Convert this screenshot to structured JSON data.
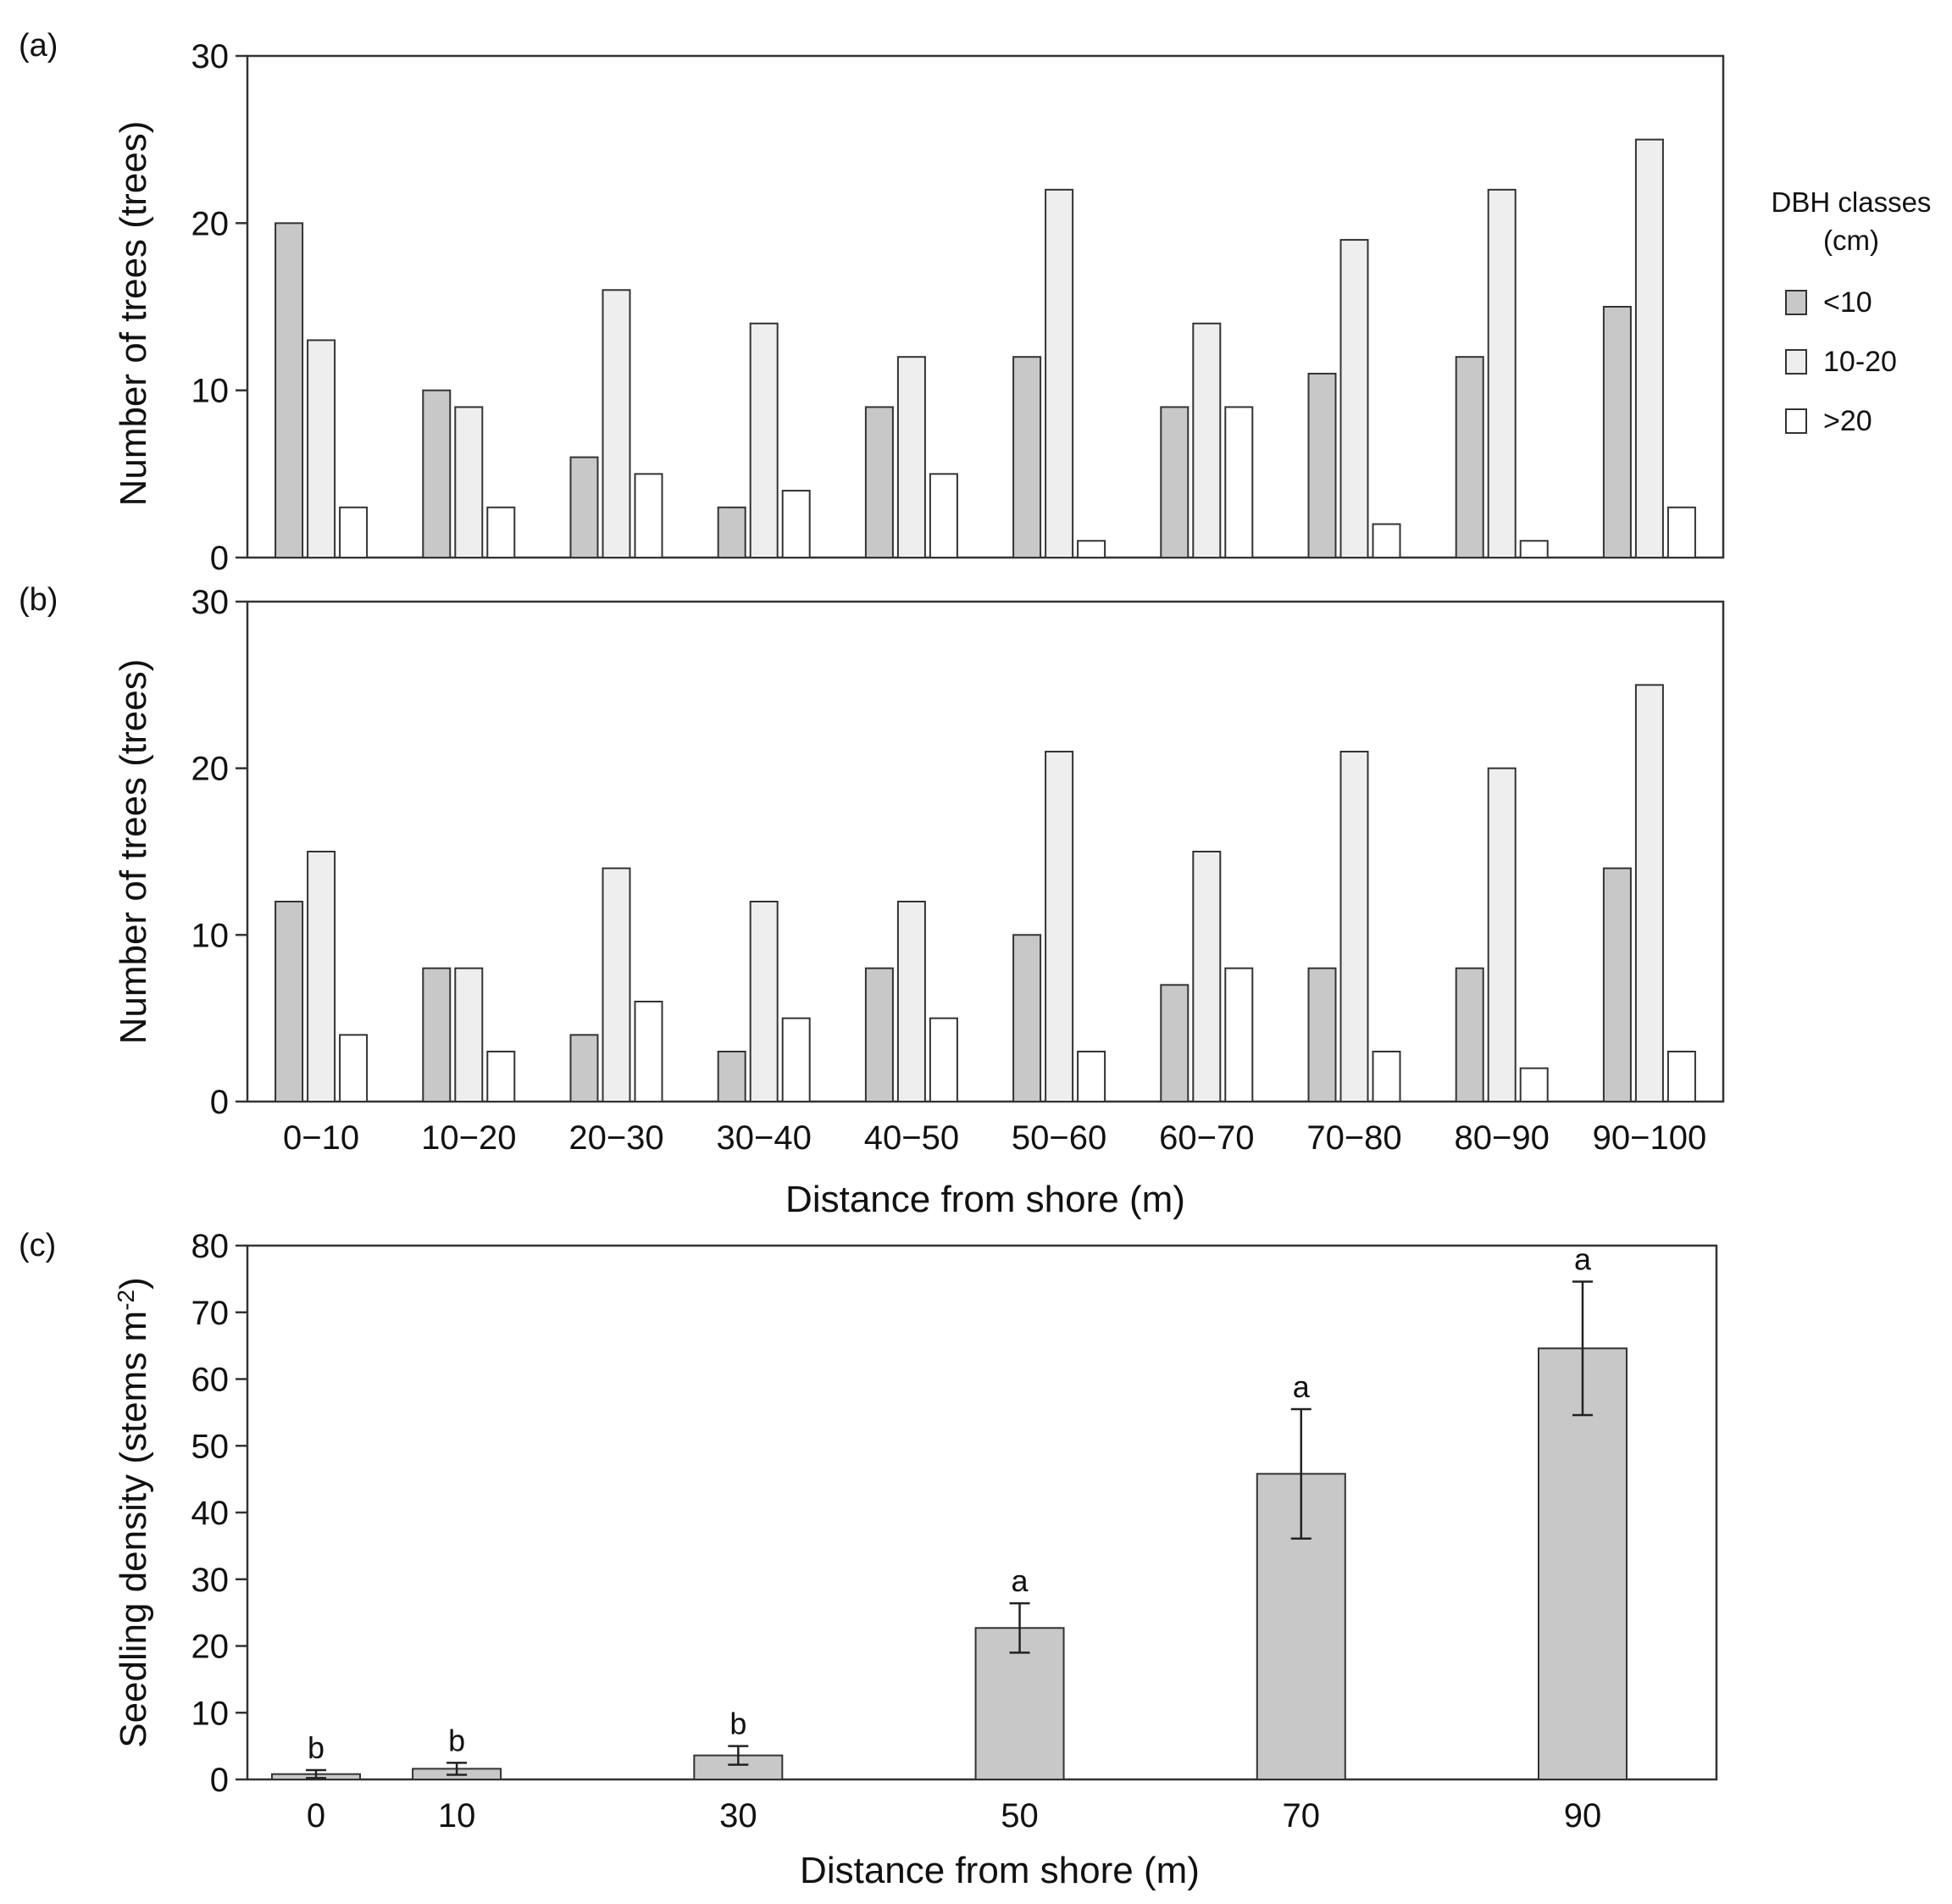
{
  "chart_data": [
    {
      "type": "bar",
      "panel_label": "(a)",
      "ylabel": "Number of trees (trees)",
      "ylim": [
        0,
        30
      ],
      "yticks": [
        0,
        10,
        20,
        30
      ],
      "categories": [
        "0−10",
        "10−20",
        "20−30",
        "30−40",
        "40−50",
        "50−60",
        "60−70",
        "70−80",
        "80−90",
        "90−100"
      ],
      "series": [
        {
          "name": "<10",
          "color": "#c8c8c8",
          "values": [
            20,
            10,
            6,
            3,
            9,
            12,
            9,
            11,
            12,
            15
          ]
        },
        {
          "name": "10-20",
          "color": "#eeeeee",
          "values": [
            13,
            9,
            16,
            14,
            12,
            22,
            14,
            19,
            22,
            25
          ]
        },
        {
          "name": ">20",
          "color": "#ffffff",
          "values": [
            3,
            3,
            5,
            4,
            5,
            1,
            9,
            2,
            1,
            3
          ]
        }
      ],
      "legend": {
        "title": "DBH classes (cm)",
        "placement": "right"
      },
      "grid": false
    },
    {
      "type": "bar",
      "panel_label": "(b)",
      "ylabel": "Number of trees (trees)",
      "xlabel": "Distance from shore (m)",
      "ylim": [
        0,
        30
      ],
      "yticks": [
        0,
        10,
        20,
        30
      ],
      "categories": [
        "0−10",
        "10−20",
        "20−30",
        "30−40",
        "40−50",
        "50−60",
        "60−70",
        "70−80",
        "80−90",
        "90−100"
      ],
      "series": [
        {
          "name": "<10",
          "color": "#c8c8c8",
          "values": [
            12,
            8,
            4,
            3,
            8,
            10,
            7,
            8,
            8,
            14
          ]
        },
        {
          "name": "10-20",
          "color": "#eeeeee",
          "values": [
            15,
            8,
            14,
            12,
            12,
            21,
            15,
            21,
            20,
            25
          ]
        },
        {
          "name": ">20",
          "color": "#ffffff",
          "values": [
            4,
            3,
            6,
            5,
            5,
            3,
            8,
            3,
            2,
            3
          ]
        }
      ],
      "grid": false
    },
    {
      "type": "bar",
      "panel_label": "(c)",
      "ylabel": "Seedling density (stems m",
      "ylabel_sup": "-2",
      "ylabel_end": ")",
      "xlabel": "Distance from shore (m)",
      "ylim": [
        0,
        80
      ],
      "yticks": [
        0,
        10,
        20,
        30,
        40,
        50,
        60,
        70,
        80
      ],
      "x": [
        0,
        10,
        30,
        50,
        70,
        90
      ],
      "categories": [
        "0",
        "10",
        "30",
        "50",
        "70",
        "90"
      ],
      "values": [
        0.8,
        1.6,
        3.6,
        22.7,
        45.8,
        64.6
      ],
      "error": [
        0.6,
        0.9,
        1.4,
        3.7,
        9.7,
        10.0
      ],
      "significance": [
        "b",
        "b",
        "b",
        "a",
        "a",
        "a"
      ],
      "color": "#c8c8c8",
      "grid": false
    }
  ],
  "legend_title_lines": [
    "DBH classes",
    "(cm)"
  ]
}
